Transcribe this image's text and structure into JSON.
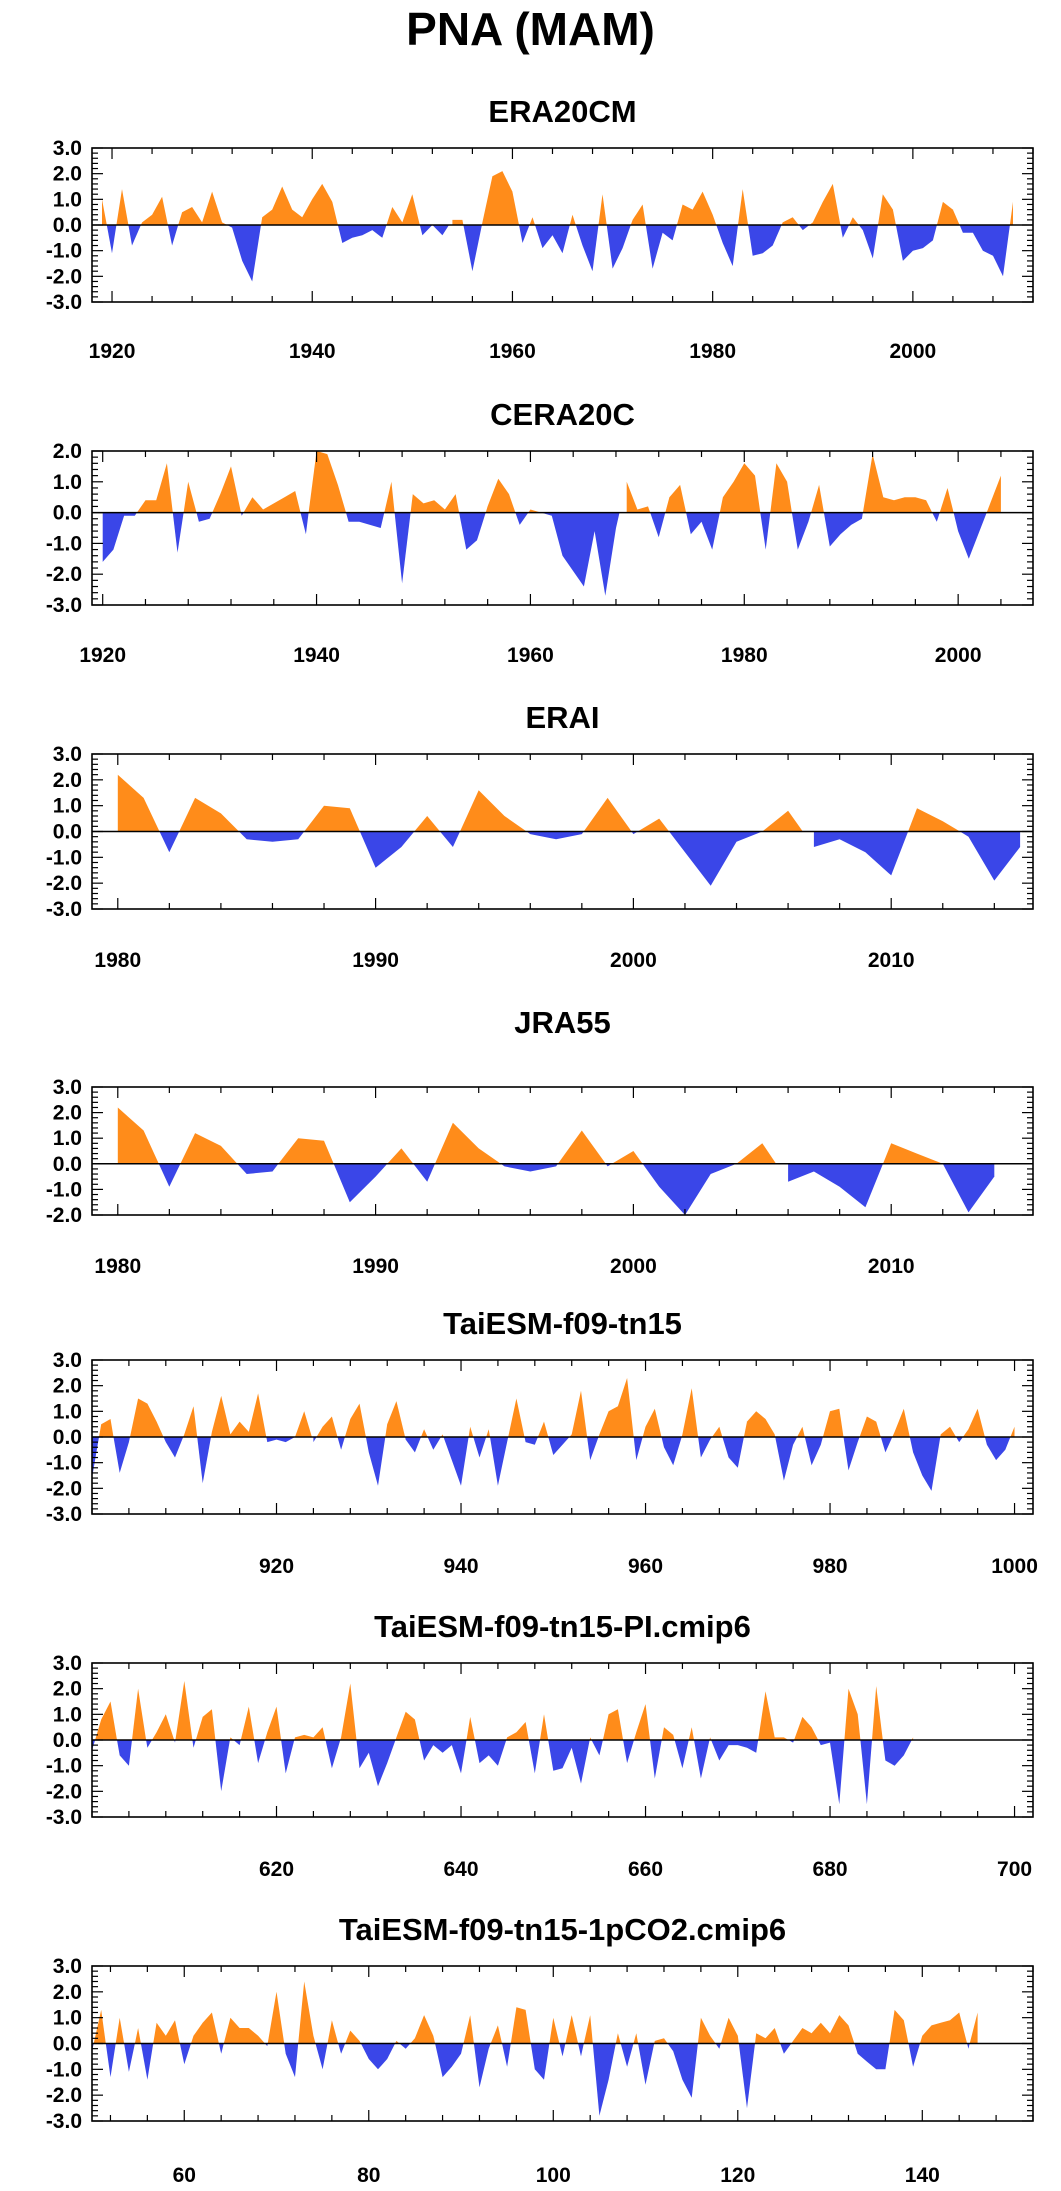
{
  "title": "PNA (MAM)",
  "colors": {
    "positive": "#FF8C1A",
    "negative": "#3A46E8",
    "axis": "#000000"
  },
  "chart_data": [
    {
      "type": "area",
      "title": "ERA20CM",
      "xlim": [
        1918,
        2012
      ],
      "ylim": [
        -3,
        3
      ],
      "xticks": [
        1920,
        1940,
        1960,
        1980,
        2000
      ],
      "yticks": [
        3,
        2,
        1,
        0,
        -1,
        -2,
        -3
      ],
      "x_start": 1919,
      "values": [
        1.0,
        -1.1,
        1.4,
        -0.8,
        0.1,
        0.4,
        1.1,
        -0.8,
        0.5,
        0.7,
        0.1,
        1.3,
        0.1,
        -0.1,
        -1.4,
        -2.2,
        0.3,
        0.6,
        1.5,
        0.6,
        0.3,
        1.0,
        1.6,
        0.9,
        -0.7,
        -0.5,
        -0.4,
        -0.2,
        -0.5,
        0.7,
        0.1,
        1.2,
        -0.4,
        0.0,
        -0.4,
        0.2,
        0.2,
        -1.8,
        0.1,
        1.9,
        2.1,
        1.3,
        -0.7,
        0.3,
        -0.9,
        -0.4,
        -1.1,
        0.4,
        -0.8,
        -1.8,
        1.2,
        -1.7,
        -0.9,
        0.2,
        0.8,
        -1.7,
        -0.3,
        -0.6,
        0.8,
        0.6,
        1.3,
        0.4,
        -0.7,
        -1.6,
        1.4,
        -1.2,
        -1.1,
        -0.8,
        0.1,
        0.3,
        -0.2,
        0.1,
        0.9,
        1.6,
        -0.5,
        0.3,
        -0.2,
        -1.3,
        1.2,
        0.6,
        -1.4,
        -1.0,
        -0.9,
        -0.6,
        0.9,
        0.6,
        -0.3,
        -0.3,
        -1.0,
        -1.2,
        -2.0,
        0.9
      ]
    },
    {
      "type": "area",
      "title": "CERA20C",
      "xlim": [
        1919,
        2007
      ],
      "ylim": [
        -3,
        2
      ],
      "xticks": [
        1920,
        1940,
        1960,
        1980,
        2000
      ],
      "yticks": [
        2,
        1,
        0,
        -1,
        -2,
        -3
      ],
      "x_start": 1920,
      "values": [
        -1.6,
        -1.2,
        -0.1,
        -0.1,
        0.4,
        0.4,
        1.6,
        -1.3,
        1.0,
        -0.3,
        -0.2,
        0.6,
        1.5,
        -0.1,
        0.5,
        0.1,
        0.3,
        0.5,
        0.7,
        -0.7,
        2.0,
        1.9,
        0.9,
        -0.3,
        -0.3,
        -0.4,
        -0.5,
        1.0,
        -2.3,
        0.6,
        0.3,
        0.4,
        0.1,
        0.6,
        -1.2,
        -0.9,
        0.2,
        1.1,
        0.6,
        -0.4,
        0.1,
        0.0,
        -0.1,
        -1.4,
        -1.9,
        -2.4,
        -0.6,
        -2.7,
        -0.5,
        1.0,
        0.1,
        0.2,
        -0.8,
        0.5,
        0.9,
        -0.7,
        -0.3,
        -1.2,
        0.5,
        1.0,
        1.6,
        1.2,
        -1.2,
        1.6,
        1.0,
        -1.2,
        -0.3,
        0.9,
        -1.1,
        -0.7,
        -0.4,
        -0.2,
        1.9,
        0.5,
        0.4,
        0.5,
        0.5,
        0.4,
        -0.3,
        0.8,
        -0.6,
        -1.5,
        -0.6,
        0.3,
        1.2
      ]
    },
    {
      "type": "area",
      "title": "ERAI",
      "xlim": [
        1979,
        2015.5
      ],
      "ylim": [
        -3,
        3
      ],
      "xticks": [
        1980,
        1990,
        2000,
        2010
      ],
      "yticks": [
        3,
        2,
        1,
        0,
        -1,
        -2,
        -3
      ],
      "x_start": 1980,
      "values": [
        2.2,
        1.3,
        -0.8,
        1.3,
        0.7,
        -0.3,
        -0.4,
        -0.3,
        1.0,
        0.9,
        -1.4,
        -0.6,
        0.6,
        -0.6,
        1.6,
        0.6,
        -0.1,
        -0.3,
        -0.1,
        1.3,
        -0.1,
        0.5,
        -0.8,
        -2.1,
        -0.4,
        0.0,
        0.8,
        -0.6,
        -0.3,
        -0.8,
        -1.7,
        0.9,
        0.4,
        -0.2,
        -1.9,
        -0.6
      ]
    },
    {
      "type": "area",
      "title": "JRA55",
      "xlim": [
        1979,
        2015.5
      ],
      "ylim": [
        -2,
        3
      ],
      "xticks": [
        1980,
        1990,
        2000,
        2010
      ],
      "yticks": [
        3,
        2,
        1,
        0,
        -1,
        -2
      ],
      "x_start": 1980,
      "values": [
        2.2,
        1.3,
        -0.9,
        1.2,
        0.7,
        -0.4,
        -0.3,
        1.0,
        0.9,
        -1.5,
        -0.5,
        0.6,
        -0.7,
        1.6,
        0.6,
        -0.1,
        -0.3,
        -0.1,
        1.3,
        -0.1,
        0.5,
        -0.9,
        -2.0,
        -0.4,
        0.0,
        0.8,
        -0.7,
        -0.3,
        -0.9,
        -1.7,
        0.8,
        0.4,
        0.0,
        -1.9,
        -0.5
      ]
    },
    {
      "type": "area",
      "title": "TaiESM-f09-tn15",
      "xlim": [
        900,
        1002
      ],
      "ylim": [
        -3,
        3
      ],
      "xticks": [
        920,
        940,
        960,
        980,
        1000
      ],
      "yticks": [
        3,
        2,
        1,
        0,
        -1,
        -2,
        -3
      ],
      "x_start": 900,
      "values": [
        -1.6,
        0.5,
        0.7,
        -1.4,
        -0.2,
        1.5,
        1.3,
        0.6,
        -0.2,
        -0.8,
        0.1,
        1.2,
        -1.8,
        0.2,
        1.6,
        0.1,
        0.6,
        0.2,
        1.7,
        -0.2,
        -0.1,
        -0.2,
        0.0,
        1.0,
        -0.2,
        0.4,
        0.8,
        -0.5,
        0.7,
        1.3,
        -0.6,
        -1.9,
        0.5,
        1.4,
        -0.1,
        -0.6,
        0.3,
        -0.5,
        0.1,
        -0.9,
        -1.9,
        0.4,
        -0.8,
        0.3,
        -1.9,
        -0.2,
        1.5,
        -0.2,
        -0.3,
        0.6,
        -0.7,
        -0.3,
        0.1,
        1.8,
        -0.9,
        0.1,
        1.0,
        1.2,
        2.3,
        -0.9,
        0.4,
        1.1,
        -0.4,
        -1.1,
        0.1,
        1.9,
        -0.8,
        -0.1,
        0.4,
        -0.8,
        -1.2,
        0.6,
        1.0,
        0.7,
        0.1,
        -1.7,
        -0.3,
        0.4,
        -1.1,
        -0.3,
        1.0,
        1.1,
        -1.3,
        -0.2,
        0.8,
        0.6,
        -0.6,
        0.2,
        1.1,
        -0.6,
        -1.5,
        -2.1,
        0.1,
        0.4,
        -0.2,
        0.3,
        1.1,
        -0.3,
        -0.9,
        -0.5,
        0.4
      ]
    },
    {
      "type": "area",
      "title": "TaiESM-f09-tn15-PI.cmip6",
      "xlim": [
        600,
        702
      ],
      "ylim": [
        -3,
        3
      ],
      "xticks": [
        620,
        640,
        660,
        680,
        700
      ],
      "yticks": [
        3,
        2,
        1,
        0,
        -1,
        -2,
        -3
      ],
      "x_start": 600,
      "values": [
        -0.4,
        0.8,
        1.5,
        -0.6,
        -1.0,
        2.0,
        -0.3,
        0.3,
        1.0,
        -0.1,
        2.3,
        -0.3,
        0.9,
        1.2,
        -2.0,
        0.1,
        -0.2,
        1.3,
        -0.9,
        0.3,
        1.3,
        -1.3,
        0.1,
        0.2,
        0.1,
        0.5,
        -1.1,
        0.1,
        2.2,
        -1.1,
        -0.5,
        -1.8,
        -0.9,
        0.1,
        1.1,
        0.8,
        -0.8,
        -0.2,
        -0.5,
        -0.2,
        -1.3,
        0.9,
        -0.9,
        -0.6,
        -1.0,
        0.1,
        0.3,
        0.7,
        -1.3,
        1.0,
        -1.2,
        -1.1,
        -0.3,
        -1.7,
        0.1,
        -0.6,
        1.0,
        1.2,
        -0.9,
        0.3,
        1.4,
        -1.5,
        0.5,
        0.2,
        -1.1,
        0.5,
        -1.5,
        0.1,
        -0.8,
        -0.2,
        -0.2,
        -0.3,
        -0.5,
        1.9,
        0.1,
        0.1,
        -0.1,
        0.9,
        0.5,
        -0.2,
        -0.1,
        -2.5,
        2.0,
        1.0,
        -2.5,
        2.1,
        -0.8,
        -1.0,
        -0.6,
        0.1
      ]
    },
    {
      "type": "area",
      "title": "TaiESM-f09-tn15-1pCO2.cmip6",
      "xlim": [
        50,
        152
      ],
      "ylim": [
        -3,
        3
      ],
      "xticks": [
        60,
        80,
        100,
        120,
        140
      ],
      "yticks": [
        3,
        2,
        1,
        0,
        -1,
        -2,
        -3
      ],
      "x_start": 50,
      "values": [
        -0.3,
        1.3,
        -1.3,
        1.0,
        -1.1,
        0.6,
        -1.4,
        0.8,
        0.3,
        0.9,
        -0.8,
        0.3,
        0.8,
        1.2,
        -0.4,
        1.0,
        0.6,
        0.6,
        0.3,
        -0.1,
        2.0,
        -0.4,
        -1.3,
        2.4,
        0.3,
        -1.0,
        0.9,
        -0.4,
        0.5,
        0.1,
        -0.6,
        -1.0,
        -0.6,
        0.1,
        -0.2,
        0.2,
        1.1,
        0.3,
        -1.3,
        -0.9,
        -0.4,
        1.1,
        -1.7,
        -0.2,
        0.7,
        -0.9,
        1.4,
        1.3,
        -1.0,
        -1.4,
        1.0,
        -0.5,
        1.1,
        -0.5,
        1.1,
        -2.8,
        -1.4,
        0.4,
        -0.9,
        0.4,
        -1.6,
        0.1,
        0.2,
        -0.3,
        -1.4,
        -2.1,
        1.0,
        0.3,
        -0.2,
        1.0,
        0.3,
        -2.5,
        0.4,
        0.2,
        0.6,
        -0.4,
        0.1,
        0.6,
        0.4,
        0.8,
        0.4,
        1.1,
        0.7,
        -0.4,
        -0.7,
        -1.0,
        -1.0,
        1.3,
        0.9,
        -0.9,
        0.3,
        0.7,
        0.8,
        0.9,
        1.2,
        -0.2,
        1.2
      ]
    }
  ]
}
